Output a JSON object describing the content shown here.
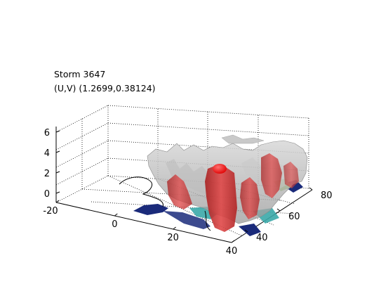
{
  "chart_data": {
    "type": "3d-surface",
    "title": "Storm 3647",
    "subtitle": "(U,V) (1.2699,0.38124)",
    "x_ticks": [
      -20,
      0,
      20,
      40
    ],
    "y_ticks": [
      40,
      60,
      80
    ],
    "z_ticks": [
      0,
      2,
      4,
      6
    ],
    "xlim": [
      -20,
      40
    ],
    "ylim": [
      30,
      80
    ],
    "zlim": [
      0,
      6.5
    ],
    "grid": true,
    "surfaces": [
      {
        "name": "gray-isosurface",
        "color": "#b4b4b4"
      },
      {
        "name": "red-isosurface",
        "color": "#d23030"
      }
    ],
    "peak": {
      "x": 25,
      "y": 55,
      "z": 2.8
    },
    "colors": {
      "gray_surface": "#b4b4b4",
      "red_surface": "#d23030",
      "peak": "#ff0000",
      "ground_blue": "#1a2a7a",
      "ground_teal": "#3aa8a8",
      "ground_green": "#8cc050"
    }
  }
}
